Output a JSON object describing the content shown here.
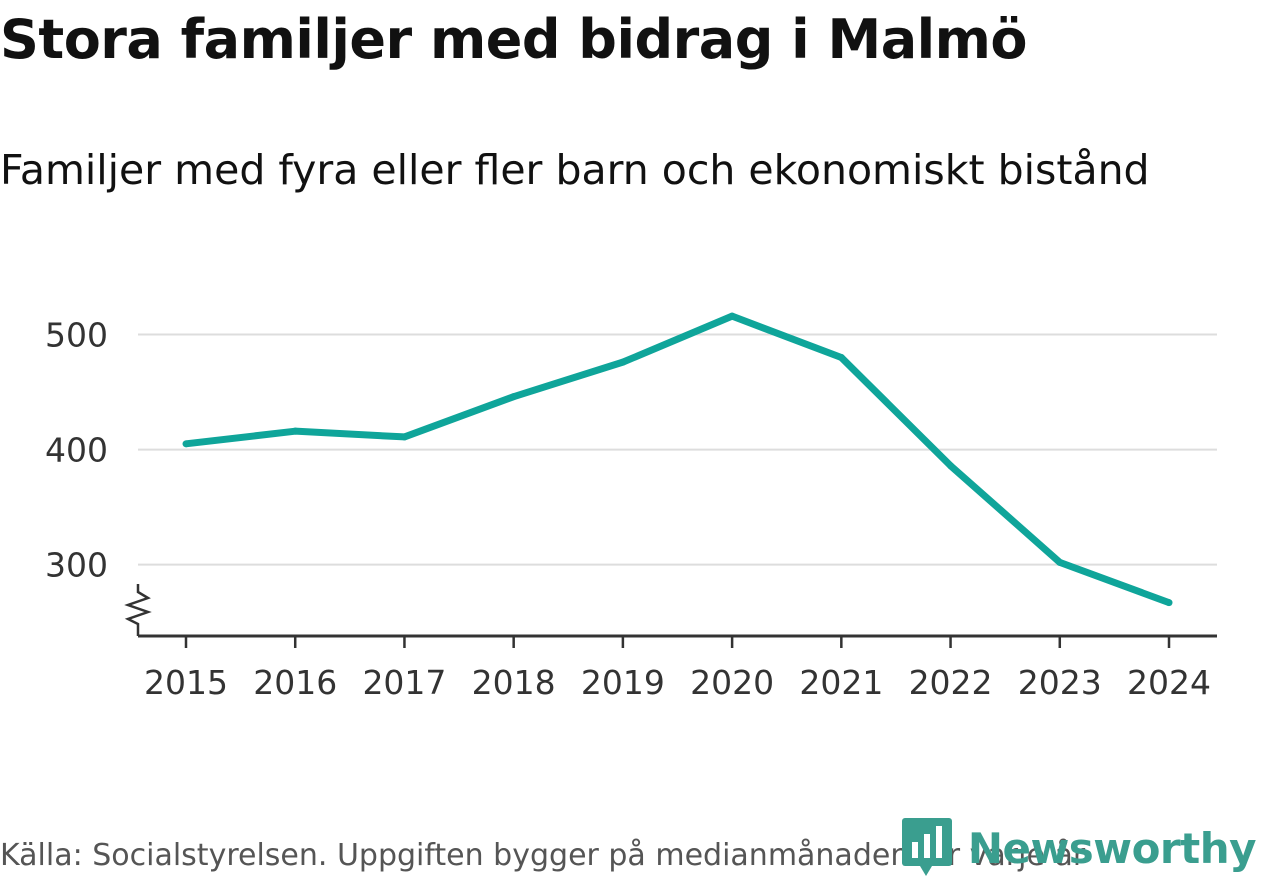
{
  "title": "Stora familjer med bidrag i Malmö",
  "subtitle": "Familjer med fyra eller fler barn och ekonomiskt bistånd",
  "source": "Källa: Socialstyrelsen. Uppgiften bygger på medianmånaden för varje år",
  "brand": {
    "name": "Newsworthy",
    "color": "#3a9e8f"
  },
  "chart_data": {
    "type": "line",
    "title": "Stora familjer med bidrag i Malmö",
    "subtitle": "Familjer med fyra eller fler barn och ekonomiskt bistånd",
    "xlabel": "",
    "ylabel": "",
    "x": [
      "2015",
      "2016",
      "2017",
      "2018",
      "2019",
      "2020",
      "2021",
      "2022",
      "2023",
      "2024"
    ],
    "series": [
      {
        "name": "Familjer med fyra eller fler barn och ekonomiskt bistånd",
        "values": [
          405,
          416,
          411,
          446,
          476,
          516,
          480,
          386,
          302,
          267
        ],
        "color": "#0fa59a"
      }
    ],
    "yticks": [
      300,
      400,
      500
    ],
    "ylim": [
      238,
      530
    ],
    "axis_break": true,
    "grid": true,
    "legend": "none"
  }
}
